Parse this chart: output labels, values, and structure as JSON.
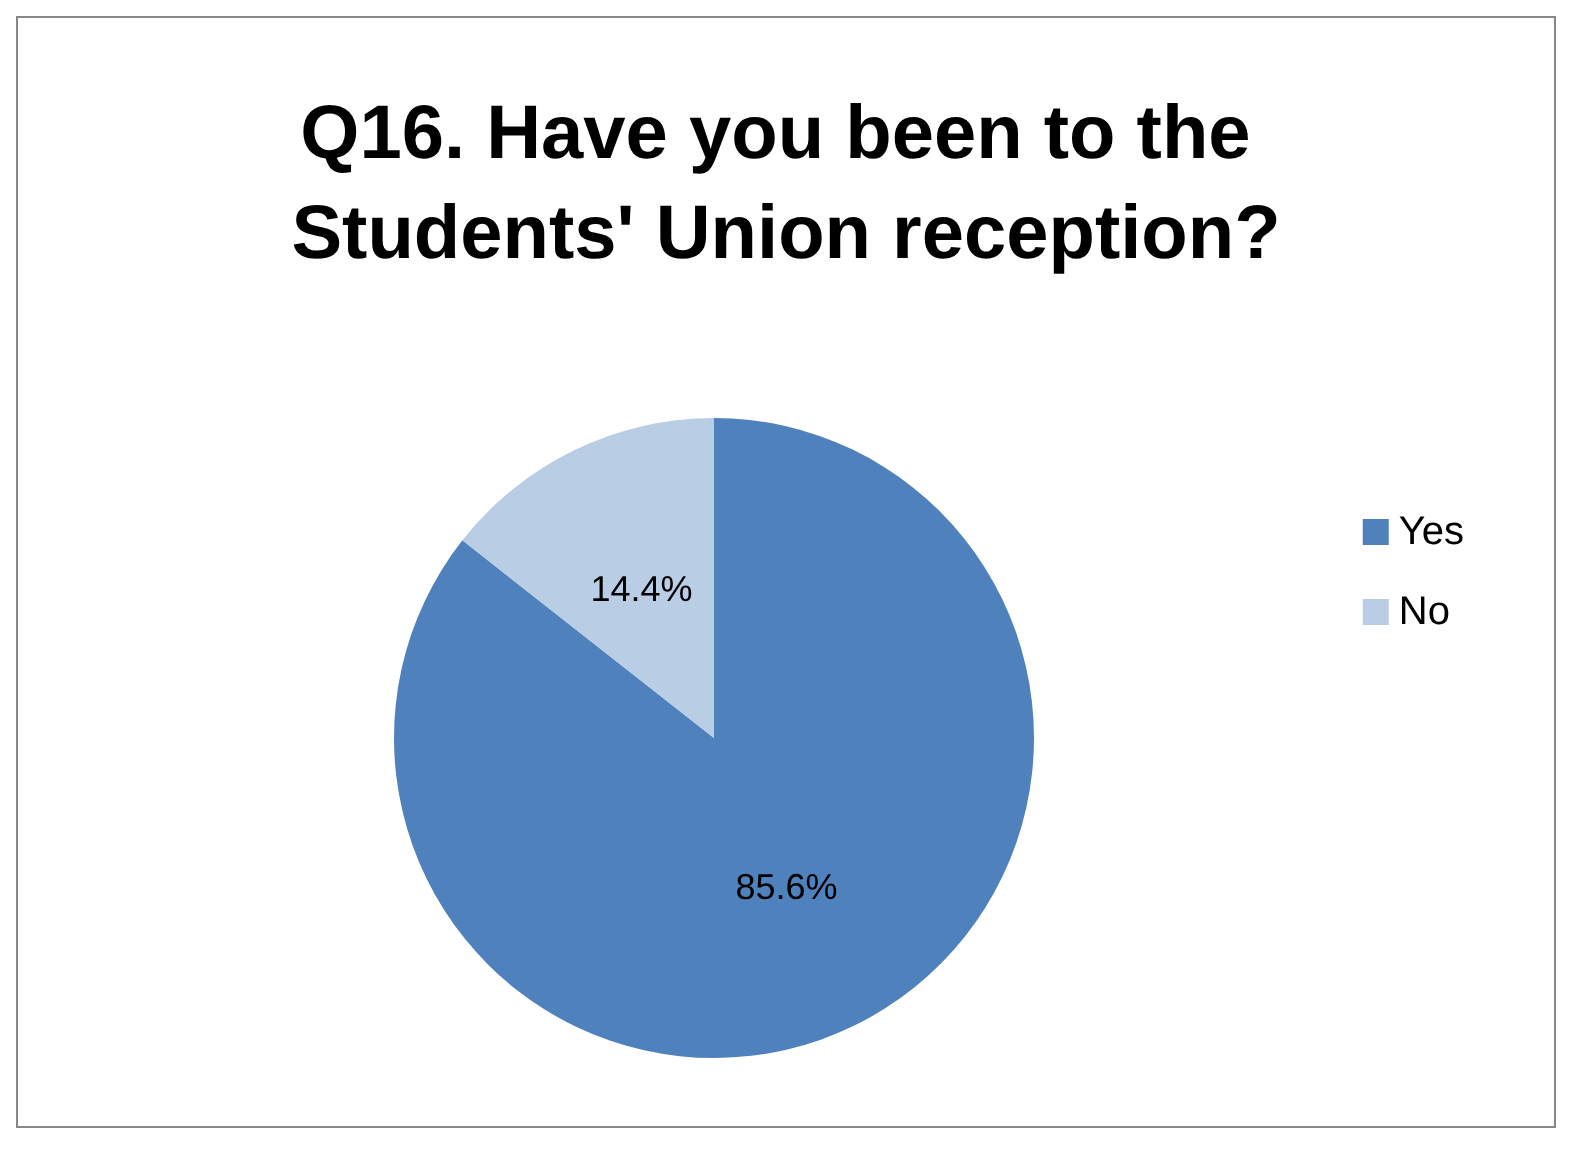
{
  "chart_data": {
    "type": "pie",
    "title": "Q16. Have you been to the Students' Union reception?",
    "categories": [
      "Yes",
      "No"
    ],
    "values": [
      85.6,
      14.4
    ],
    "colors": [
      "#4f81bd",
      "#b9cde5"
    ],
    "value_labels": [
      "85.6%",
      "14.4%"
    ],
    "legend": "right"
  }
}
